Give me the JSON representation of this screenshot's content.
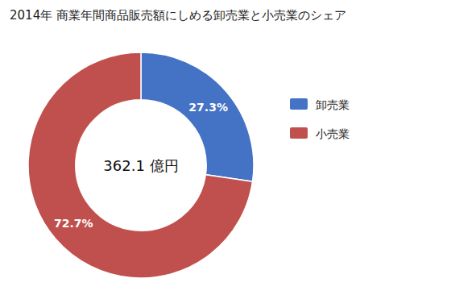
{
  "chart_data": {
    "type": "donut",
    "title": "2014年 商業年間商品販売額にしめる卸売業と小売業のシェア",
    "categories": [
      "卸売業",
      "小売業"
    ],
    "values": [
      27.3,
      72.7
    ],
    "value_labels": [
      "27.3%",
      "72.7%"
    ],
    "colors": [
      "#4472C4",
      "#C0504D"
    ],
    "annotations": [
      "362.1 億円"
    ],
    "data_labels": true,
    "legend": "right"
  }
}
